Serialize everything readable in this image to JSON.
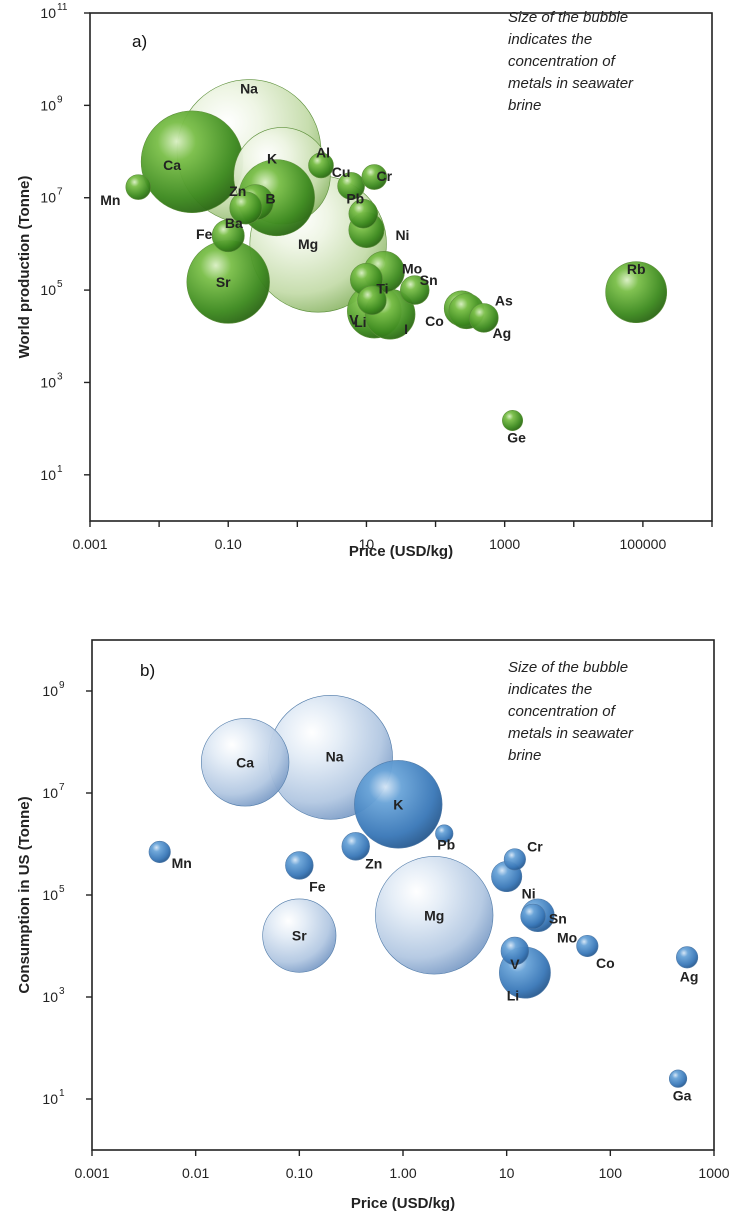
{
  "chart_data": [
    {
      "type": "scatter",
      "panel_label": "a)",
      "note_lines": [
        "Size of the bubble",
        "indicates the",
        "concentration of",
        "metals in seawater",
        "brine"
      ],
      "xlabel": "Price (USD/kg)",
      "ylabel": "World production (Tonne)",
      "x_scale": "log",
      "y_scale": "log",
      "xlim": [
        0.001,
        1000000
      ],
      "ylim": [
        1,
        100000000000
      ],
      "x_ticks": [
        {
          "value": 0.001,
          "label": "0.001"
        },
        {
          "value": 0.1,
          "label": "0.10"
        },
        {
          "value": 10,
          "label": "10"
        },
        {
          "value": 1000,
          "label": "1000"
        },
        {
          "value": 100000,
          "label": "100000"
        }
      ],
      "y_ticks": [
        {
          "value": 10,
          "base": "10",
          "exp": "1"
        },
        {
          "value": 1000,
          "base": "10",
          "exp": "3"
        },
        {
          "value": 100000,
          "base": "10",
          "exp": "5"
        },
        {
          "value": 10000000,
          "base": "10",
          "exp": "7"
        },
        {
          "value": 1000000000,
          "base": "10",
          "exp": "9"
        },
        {
          "value": 100000000000,
          "base": "10",
          "exp": "11"
        }
      ],
      "color_scheme": "green",
      "points": [
        {
          "label": "Na",
          "x": 0.2,
          "y": 100000000,
          "size": 1.0
        },
        {
          "label": "Ca",
          "x": 0.03,
          "y": 60000000,
          "size": 0.5
        },
        {
          "label": "Mg",
          "x": 2,
          "y": 1000000,
          "size": 0.9
        },
        {
          "label": "K",
          "x": 0.6,
          "y": 30000000,
          "size": 0.45
        },
        {
          "label": "B",
          "x": 0.5,
          "y": 10000000,
          "size": 0.28
        },
        {
          "label": "Sr",
          "x": 0.1,
          "y": 150000,
          "size": 0.33
        },
        {
          "label": "Zn",
          "x": 0.25,
          "y": 8000000,
          "size": 0.06
        },
        {
          "label": "Ba",
          "x": 0.18,
          "y": 6000000,
          "size": 0.05
        },
        {
          "label": "Fe",
          "x": 0.1,
          "y": 1500000,
          "size": 0.05
        },
        {
          "label": "Mn",
          "x": 0.005,
          "y": 17000000,
          "size": 0.03
        },
        {
          "label": "Al",
          "x": 2.2,
          "y": 50000000,
          "size": 0.03
        },
        {
          "label": "Cu",
          "x": 6,
          "y": 18000000,
          "size": 0.035
        },
        {
          "label": "Cr",
          "x": 13,
          "y": 28000000,
          "size": 0.03
        },
        {
          "label": "Pb",
          "x": 9,
          "y": 4500000,
          "size": 0.04
        },
        {
          "label": "Ni",
          "x": 10,
          "y": 2000000,
          "size": 0.06
        },
        {
          "label": "Mo",
          "x": 18,
          "y": 250000,
          "size": 0.08
        },
        {
          "label": "Ti",
          "x": 10,
          "y": 170000,
          "size": 0.05
        },
        {
          "label": "V",
          "x": 12,
          "y": 60000,
          "size": 0.04
        },
        {
          "label": "Li",
          "x": 13,
          "y": 35000,
          "size": 0.14
        },
        {
          "label": "I",
          "x": 22,
          "y": 30000,
          "size": 0.12
        },
        {
          "label": "Sn",
          "x": 50,
          "y": 100000,
          "size": 0.04
        },
        {
          "label": "As",
          "x": 240,
          "y": 40000,
          "size": 0.06
        },
        {
          "label": "Co",
          "x": 280,
          "y": 35000,
          "size": 0.06
        },
        {
          "label": "Ag",
          "x": 500,
          "y": 25000,
          "size": 0.04
        },
        {
          "label": "Ge",
          "x": 1300,
          "y": 150,
          "size": 0.02
        },
        {
          "label": "Rb",
          "x": 80000,
          "y": 90000,
          "size": 0.18
        }
      ]
    },
    {
      "type": "scatter",
      "panel_label": "b)",
      "note_lines": [
        "Size of the bubble",
        "indicates the",
        "concentration of",
        "metals in seawater",
        "brine"
      ],
      "xlabel": "Price (USD/kg)",
      "ylabel": "Consumption in US (Tonne)",
      "x_scale": "log",
      "y_scale": "log",
      "xlim": [
        0.001,
        1000
      ],
      "ylim": [
        1,
        10000000000
      ],
      "x_ticks": [
        {
          "value": 0.001,
          "label": "0.001"
        },
        {
          "value": 0.01,
          "label": "0.01"
        },
        {
          "value": 0.1,
          "label": "0.10"
        },
        {
          "value": 1,
          "label": "1.00"
        },
        {
          "value": 10,
          "label": "10"
        },
        {
          "value": 100,
          "label": "100"
        },
        {
          "value": 1000,
          "label": "1000"
        }
      ],
      "y_ticks": [
        {
          "value": 10,
          "base": "10",
          "exp": "1"
        },
        {
          "value": 1000,
          "base": "10",
          "exp": "3"
        },
        {
          "value": 100000,
          "base": "10",
          "exp": "5"
        },
        {
          "value": 10000000,
          "base": "10",
          "exp": "7"
        },
        {
          "value": 1000000000,
          "base": "10",
          "exp": "9"
        }
      ],
      "color_scheme": "blue",
      "points": [
        {
          "label": "Na",
          "x": 0.2,
          "y": 50000000,
          "size": 1.0
        },
        {
          "label": "Ca",
          "x": 0.03,
          "y": 40000000,
          "size": 0.5
        },
        {
          "label": "K",
          "x": 0.9,
          "y": 6000000,
          "size": 0.5
        },
        {
          "label": "Mg",
          "x": 2,
          "y": 40000,
          "size": 0.9
        },
        {
          "label": "Sr",
          "x": 0.1,
          "y": 16000,
          "size": 0.35
        },
        {
          "label": "Mn",
          "x": 0.0045,
          "y": 700000,
          "size": 0.03
        },
        {
          "label": "Fe",
          "x": 0.1,
          "y": 380000,
          "size": 0.05
        },
        {
          "label": "Zn",
          "x": 0.35,
          "y": 900000,
          "size": 0.05
        },
        {
          "label": "Pb",
          "x": 2.5,
          "y": 1600000,
          "size": 0.02
        },
        {
          "label": "Cr",
          "x": 12,
          "y": 500000,
          "size": 0.03
        },
        {
          "label": "Ni",
          "x": 10,
          "y": 230000,
          "size": 0.06
        },
        {
          "label": "Sn",
          "x": 20,
          "y": 40000,
          "size": 0.07
        },
        {
          "label": "Mo",
          "x": 18,
          "y": 38000,
          "size": 0.04
        },
        {
          "label": "V",
          "x": 12,
          "y": 8000,
          "size": 0.05
        },
        {
          "label": "Li",
          "x": 15,
          "y": 3000,
          "size": 0.17
        },
        {
          "label": "Co",
          "x": 60,
          "y": 10000,
          "size": 0.03
        },
        {
          "label": "Ag",
          "x": 550,
          "y": 6000,
          "size": 0.03
        },
        {
          "label": "Ga",
          "x": 450,
          "y": 25,
          "size": 0.02
        }
      ]
    }
  ]
}
